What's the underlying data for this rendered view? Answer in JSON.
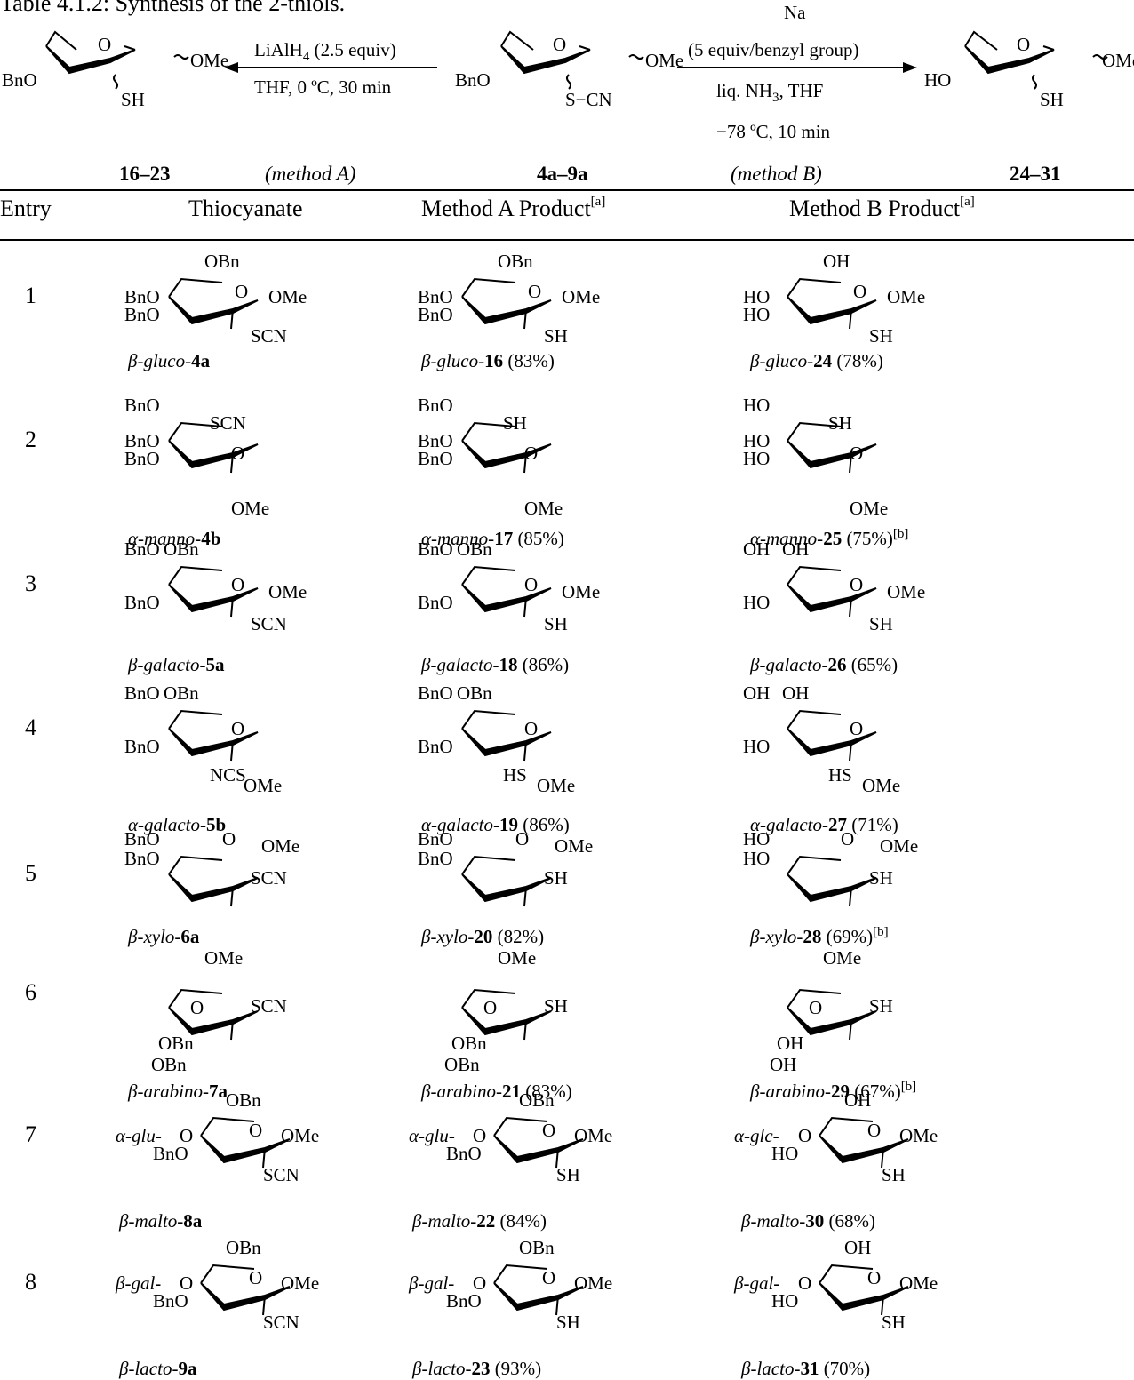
{
  "table_caption": "Table 4.1.2: Synthesis of the 2-thiols.",
  "scheme": {
    "methodA_reagent_1": "LiAlH",
    "methodA_reagent_1_sub": "4",
    "methodA_reagent_1_tail": " (2.5 equiv)",
    "methodA_reagent_2": "THF, 0 ºC, 30 min",
    "methodA_tag": "(method A)",
    "methodB_reagent_1": "Na",
    "methodB_reagent_2": "(5 equiv/benzyl group)",
    "methodB_reagent_3": "liq. NH",
    "methodB_reagent_3_sub": "3",
    "methodB_reagent_3_tail": ", THF",
    "methodB_reagent_4": "−78 ºC, 10 min",
    "methodB_tag": "(method B)",
    "left_compounds": "16–23",
    "mid_compounds": "4a–9a",
    "right_compounds": "24–31",
    "left_atoms": {
      "o": "O",
      "ome": "OMe",
      "bno": "BnO",
      "sh": "SH"
    },
    "mid_atoms": {
      "o": "O",
      "ome": "OMe",
      "bno": "BnO",
      "scn": "S−CN"
    },
    "right_atoms": {
      "o": "O",
      "ome": "OMe",
      "ho": "HO",
      "sh": "SH"
    }
  },
  "columns": [
    "Entry",
    "Thiocyanate",
    "Method A Product",
    "Method B Product"
  ],
  "column_note": "[a]",
  "rows": [
    {
      "entry": "1",
      "c1": {
        "sub": [
          "OBn",
          "BnO",
          "BnO",
          "O",
          "OMe",
          "SCN"
        ],
        "pre": "β-gluco-",
        "num": "4a",
        "yield": ""
      },
      "c2": {
        "sub": [
          "OBn",
          "BnO",
          "BnO",
          "O",
          "OMe",
          "SH"
        ],
        "pre": "β-gluco-",
        "num": "16",
        "yield": " (83%)"
      },
      "c3": {
        "sub": [
          "OH",
          "HO",
          "HO",
          "O",
          "OMe",
          "SH"
        ],
        "pre": "β-gluco-",
        "num": "24",
        "yield": " (78%)",
        "note": ""
      }
    },
    {
      "entry": "2",
      "c1": {
        "sub": [
          "BnO",
          "SCN",
          "BnO",
          "BnO",
          "O",
          "OMe"
        ],
        "pre": "α-manno-",
        "num": "4b",
        "yield": ""
      },
      "c2": {
        "sub": [
          "BnO",
          "SH",
          "BnO",
          "BnO",
          "O",
          "OMe"
        ],
        "pre": "α-manno-",
        "num": "17",
        "yield": " (85%)"
      },
      "c3": {
        "sub": [
          "HO",
          "SH",
          "HO",
          "HO",
          "O",
          "OMe"
        ],
        "pre": "α-manno-",
        "num": "25",
        "yield": " (75%)",
        "note": "[b]"
      }
    },
    {
      "entry": "3",
      "c1": {
        "sub": [
          "BnO",
          "OBn",
          "BnO",
          "O",
          "OMe",
          "SCN"
        ],
        "pre": "β-galacto-",
        "num": "5a",
        "yield": ""
      },
      "c2": {
        "sub": [
          "BnO",
          "OBn",
          "BnO",
          "O",
          "OMe",
          "SH"
        ],
        "pre": "β-galacto-",
        "num": "18",
        "yield": " (86%)"
      },
      "c3": {
        "sub": [
          "OH",
          "OH",
          "HO",
          "O",
          "OMe",
          "SH"
        ],
        "pre": "β-galacto-",
        "num": "26",
        "yield": " (65%)",
        "note": ""
      }
    },
    {
      "entry": "4",
      "c1": {
        "sub": [
          "BnO",
          "OBn",
          "BnO",
          "O",
          "NCS",
          "OMe"
        ],
        "pre": "α-galacto-",
        "num": "5b",
        "yield": ""
      },
      "c2": {
        "sub": [
          "BnO",
          "OBn",
          "BnO",
          "O",
          "HS",
          "OMe"
        ],
        "pre": "α-galacto-",
        "num": "19",
        "yield": " (86%)"
      },
      "c3": {
        "sub": [
          "OH",
          "OH",
          "HO",
          "O",
          "HS",
          "OMe"
        ],
        "pre": "α-galacto-",
        "num": "27",
        "yield": " (71%)",
        "note": ""
      }
    },
    {
      "entry": "5",
      "c1": {
        "sub": [
          "BnO",
          "BnO",
          "O",
          "OMe",
          "SCN"
        ],
        "pre": "β-xylo-",
        "num": "6a",
        "yield": ""
      },
      "c2": {
        "sub": [
          "BnO",
          "BnO",
          "O",
          "OMe",
          "SH"
        ],
        "pre": "β-xylo-",
        "num": "20",
        "yield": " (82%)"
      },
      "c3": {
        "sub": [
          "HO",
          "HO",
          "O",
          "OMe",
          "SH"
        ],
        "pre": "β-xylo-",
        "num": "28",
        "yield": " (69%)",
        "note": "[b]"
      }
    },
    {
      "entry": "6",
      "c1": {
        "sub": [
          "OMe",
          "O",
          "SCN",
          "OBn",
          "OBn"
        ],
        "pre": "β-arabino-",
        "num": "7a",
        "yield": ""
      },
      "c2": {
        "sub": [
          "OMe",
          "O",
          "SH",
          "OBn",
          "OBn"
        ],
        "pre": "β-arabino-",
        "num": "21",
        "yield": " (83%)"
      },
      "c3": {
        "sub": [
          "OMe",
          "O",
          "SH",
          "OH",
          "OH"
        ],
        "pre": "β-arabino-",
        "num": "29",
        "yield": " (67%)",
        "note": "[b]"
      }
    },
    {
      "entry": "7",
      "c1": {
        "sub": [
          "OBn",
          "α-glu-",
          "O",
          "BnO",
          "O",
          "OMe",
          "SCN"
        ],
        "pre": "β-malto-",
        "num": "8a",
        "yield": ""
      },
      "c2": {
        "sub": [
          "OBn",
          "α-glu-",
          "O",
          "BnO",
          "O",
          "OMe",
          "SH"
        ],
        "pre": "β-malto-",
        "num": "22",
        "yield": " (84%)"
      },
      "c3": {
        "sub": [
          "OH",
          "α-glc-",
          "O",
          "HO",
          "O",
          "OMe",
          "SH"
        ],
        "pre": "β-malto-",
        "num": "30",
        "yield": " (68%)",
        "note": ""
      }
    },
    {
      "entry": "8",
      "c1": {
        "sub": [
          "OBn",
          "β-gal-",
          "O",
          "BnO",
          "O",
          "OMe",
          "SCN"
        ],
        "pre": "β-lacto-",
        "num": "9a",
        "yield": ""
      },
      "c2": {
        "sub": [
          "OBn",
          "β-gal-",
          "O",
          "BnO",
          "O",
          "OMe",
          "SH"
        ],
        "pre": "β-lacto-",
        "num": "23",
        "yield": " (93%)"
      },
      "c3": {
        "sub": [
          "OH",
          "β-gal-",
          "O",
          "HO",
          "O",
          "OMe",
          "SH"
        ],
        "pre": "β-lacto-",
        "num": "31",
        "yield": " (70%)",
        "note": ""
      }
    }
  ]
}
